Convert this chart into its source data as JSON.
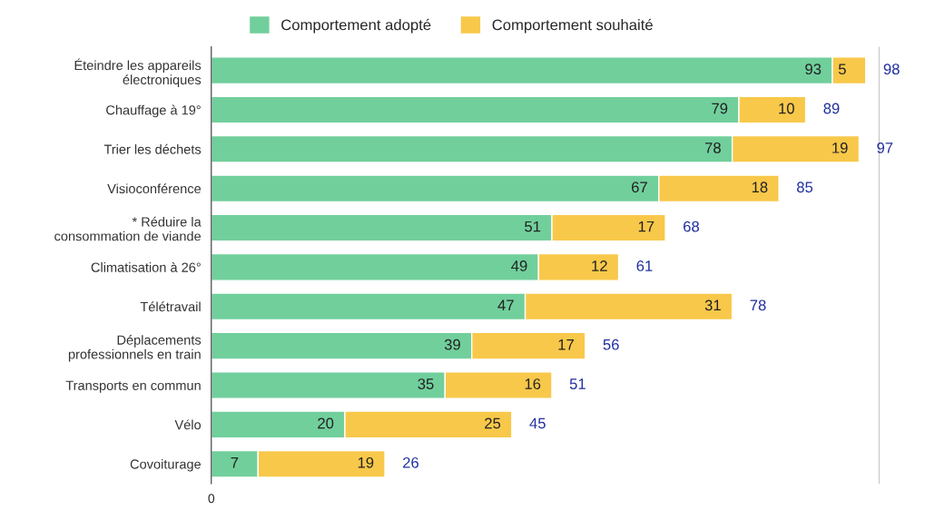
{
  "chart_data": {
    "type": "bar",
    "orientation": "horizontal",
    "stacked": true,
    "categories": [
      "Éteindre les appareils\nélectroniques",
      "Chauffage à 19°",
      "Trier les déchets",
      "Visioconférence",
      "* Réduire la\nconsommation de viande",
      "Climatisation à 26°",
      "Télétravail",
      "Déplacements\nprofessionnels en train",
      "Transports en commun",
      "Vélo",
      "Covoiturage"
    ],
    "series": [
      {
        "name": "Comportement adopté",
        "color": "#71cf9c",
        "values": [
          93,
          79,
          78,
          67,
          51,
          49,
          47,
          39,
          35,
          20,
          7
        ]
      },
      {
        "name": "Comportement souhaité",
        "color": "#f8c84a",
        "values": [
          5,
          10,
          19,
          18,
          17,
          12,
          31,
          17,
          16,
          25,
          19
        ]
      }
    ],
    "totals": [
      "98",
      "89",
      "97",
      "85",
      "68",
      "61",
      "78",
      "56",
      "51",
      "45",
      "26"
    ],
    "data_labels": true,
    "ref_lines": [
      {
        "axis": "x",
        "value": 100,
        "color": "#cccccc"
      }
    ],
    "annotations": [
      "0"
    ],
    "legend": "top"
  }
}
